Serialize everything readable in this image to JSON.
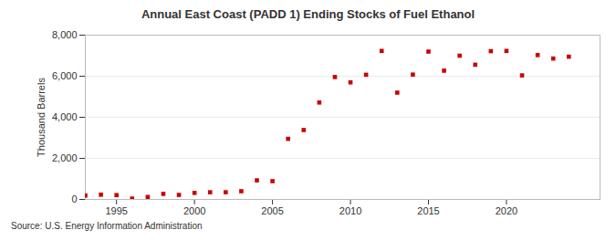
{
  "chart_data": {
    "type": "scatter",
    "title": "Annual East Coast (PADD 1) Ending Stocks of Fuel Ethanol",
    "y_label": "Thousand Barrels",
    "source": "Source: U.S. Energy Information Administration",
    "x": [
      1993,
      1994,
      1995,
      1996,
      1997,
      1998,
      1999,
      2000,
      2001,
      2002,
      2003,
      2004,
      2005,
      2006,
      2007,
      2008,
      2009,
      2010,
      2011,
      2012,
      2013,
      2014,
      2015,
      2016,
      2017,
      2018,
      2019,
      2020,
      2021,
      2022,
      2023,
      2024
    ],
    "values": [
      190,
      230,
      210,
      40,
      120,
      270,
      220,
      320,
      350,
      350,
      400,
      930,
      890,
      2950,
      3380,
      4720,
      5960,
      5700,
      6070,
      7230,
      5200,
      6080,
      7200,
      6270,
      7000,
      6560,
      7220,
      7230,
      6040,
      7030,
      6860,
      6950
    ],
    "color": "#cc0000",
    "marker": "square",
    "xlim": [
      1993,
      2026
    ],
    "xticks": [
      1995,
      2000,
      2005,
      2010,
      2015,
      2020
    ],
    "ylim": [
      0,
      8000
    ],
    "yticks": [
      0,
      {
        "value": 2000,
        "label": "2,000"
      },
      {
        "value": 4000,
        "label": "4,000"
      },
      {
        "value": 6000,
        "label": "6,000"
      },
      {
        "value": 8000,
        "label": "8,000"
      }
    ],
    "grid": true
  }
}
